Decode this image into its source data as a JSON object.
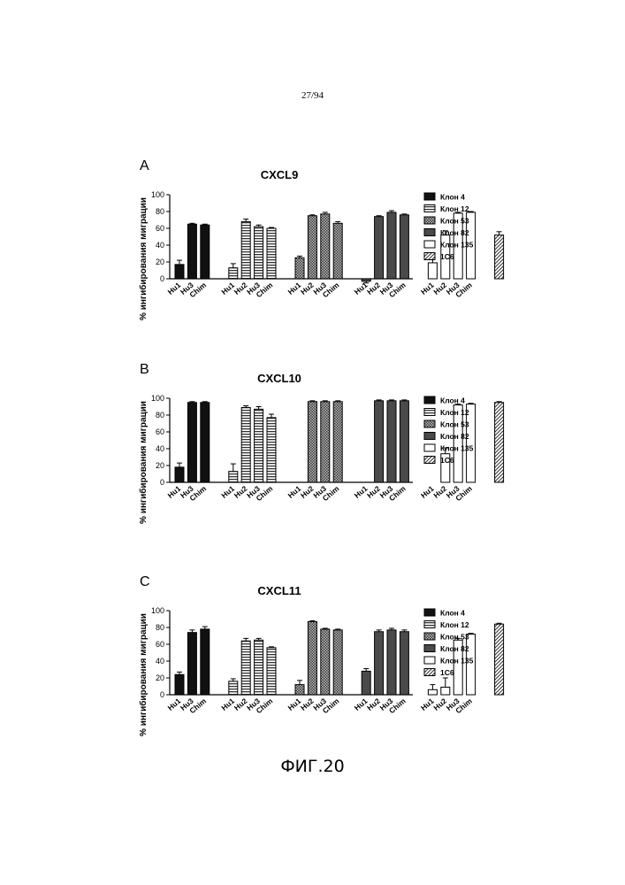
{
  "page": {
    "page_number": "27/94",
    "figure_caption": "ФИГ.20"
  },
  "colors": {
    "black": "#111111",
    "grid_pattern": "#333333",
    "dark_gray": "#4a4a4a",
    "white": "#ffffff"
  },
  "chart_data": [
    {
      "type": "bar",
      "panel_letter": "A",
      "title": "CXCL9",
      "xlabel": "",
      "ylabel": "% ингибирования миграции",
      "ylim": [
        0,
        100
      ],
      "yticks": [
        0,
        20,
        40,
        60,
        80,
        100
      ],
      "legend_position": "right",
      "series": [
        {
          "name": "Клон 4",
          "pattern": "solid",
          "categories": [
            "Hu1",
            "Hu3",
            "Chim"
          ],
          "values": [
            17,
            65,
            64
          ],
          "errors": [
            5,
            1,
            1
          ]
        },
        {
          "name": "Клон 12",
          "pattern": "hstripe",
          "categories": [
            "Hu1",
            "Hu2",
            "Hu3",
            "Chim"
          ],
          "values": [
            13,
            68,
            62,
            60
          ],
          "errors": [
            5,
            3,
            2,
            1
          ]
        },
        {
          "name": "Клон 53",
          "pattern": "check",
          "categories": [
            "Hu1",
            "Hu2",
            "Hu3",
            "Chim"
          ],
          "values": [
            25,
            75,
            77,
            66
          ],
          "errors": [
            2,
            1,
            2,
            2
          ]
        },
        {
          "name": "Клон 82",
          "pattern": "dark",
          "categories": [
            "Hu1",
            "Hu2",
            "Hu3",
            "Chim"
          ],
          "values": [
            -3,
            74,
            79,
            76
          ],
          "errors": [
            2,
            1,
            2,
            1
          ]
        },
        {
          "name": "Клон 135",
          "pattern": "open",
          "categories": [
            "Hu1",
            "Hu2",
            "Hu3",
            "Chim"
          ],
          "values": [
            19,
            52,
            78,
            79
          ],
          "errors": [
            8,
            5,
            1,
            1
          ]
        },
        {
          "name": "1C6",
          "pattern": "diag",
          "categories": [
            ""
          ],
          "values": [
            52
          ],
          "errors": [
            4
          ]
        }
      ]
    },
    {
      "type": "bar",
      "panel_letter": "B",
      "title": "CXCL10",
      "xlabel": "",
      "ylabel": "% ингибирования миграции",
      "ylim": [
        0,
        100
      ],
      "yticks": [
        0,
        20,
        40,
        60,
        80,
        100
      ],
      "legend_position": "right",
      "series": [
        {
          "name": "Клон 4",
          "pattern": "solid",
          "categories": [
            "Hu1",
            "Hu3",
            "Chim"
          ],
          "values": [
            18,
            95,
            95
          ],
          "errors": [
            5,
            1,
            1
          ]
        },
        {
          "name": "Клон 12",
          "pattern": "hstripe",
          "categories": [
            "Hu1",
            "Hu2",
            "Hu3",
            "Chim"
          ],
          "values": [
            13,
            89,
            87,
            77
          ],
          "errors": [
            9,
            2,
            3,
            4
          ]
        },
        {
          "name": "Клон 53",
          "pattern": "check",
          "categories": [
            "Hu1",
            "Hu2",
            "Hu3",
            "Chim"
          ],
          "values": [
            0,
            96,
            96,
            96
          ],
          "errors": [
            0,
            1,
            1,
            1
          ]
        },
        {
          "name": "Клон 82",
          "pattern": "dark",
          "categories": [
            "Hu1",
            "Hu2",
            "Hu3",
            "Chim"
          ],
          "values": [
            0,
            97,
            97,
            97
          ],
          "errors": [
            0,
            1,
            1,
            1
          ]
        },
        {
          "name": "Клон 135",
          "pattern": "open",
          "categories": [
            "Hu1",
            "Hu2",
            "Hu3",
            "Chim"
          ],
          "values": [
            0,
            34,
            92,
            93
          ],
          "errors": [
            0,
            7,
            1,
            1
          ]
        },
        {
          "name": "1C6",
          "pattern": "diag",
          "categories": [
            ""
          ],
          "values": [
            95
          ],
          "errors": [
            1
          ]
        }
      ]
    },
    {
      "type": "bar",
      "panel_letter": "C",
      "title": "CXCL11",
      "xlabel": "",
      "ylabel": "% ингибирования миграции",
      "ylim": [
        0,
        100
      ],
      "yticks": [
        0,
        20,
        40,
        60,
        80,
        100
      ],
      "legend_position": "right",
      "series": [
        {
          "name": "Клон 4",
          "pattern": "solid",
          "categories": [
            "Hu1",
            "Hu3",
            "Chim"
          ],
          "values": [
            24,
            74,
            78
          ],
          "errors": [
            3,
            3,
            3
          ]
        },
        {
          "name": "Клон 12",
          "pattern": "hstripe",
          "categories": [
            "Hu1",
            "Hu2",
            "Hu3",
            "Chim"
          ],
          "values": [
            16,
            64,
            65,
            56
          ],
          "errors": [
            3,
            3,
            2,
            1
          ]
        },
        {
          "name": "Клон 53",
          "pattern": "check",
          "categories": [
            "Hu1",
            "Hu2",
            "Hu3",
            "Chim"
          ],
          "values": [
            12,
            87,
            78,
            77
          ],
          "errors": [
            5,
            1,
            1,
            1
          ]
        },
        {
          "name": "Клон 82",
          "pattern": "dark",
          "categories": [
            "Hu1",
            "Hu2",
            "Hu3",
            "Chim"
          ],
          "values": [
            28,
            75,
            77,
            75
          ],
          "errors": [
            3,
            2,
            2,
            2
          ]
        },
        {
          "name": "Клон 135",
          "pattern": "open",
          "categories": [
            "Hu1",
            "Hu2",
            "Hu3",
            "Chim"
          ],
          "values": [
            6,
            9,
            65,
            72
          ],
          "errors": [
            6,
            11,
            2,
            1
          ]
        },
        {
          "name": "1C6",
          "pattern": "diag",
          "categories": [
            ""
          ],
          "values": [
            84
          ],
          "errors": [
            1
          ]
        }
      ]
    }
  ]
}
